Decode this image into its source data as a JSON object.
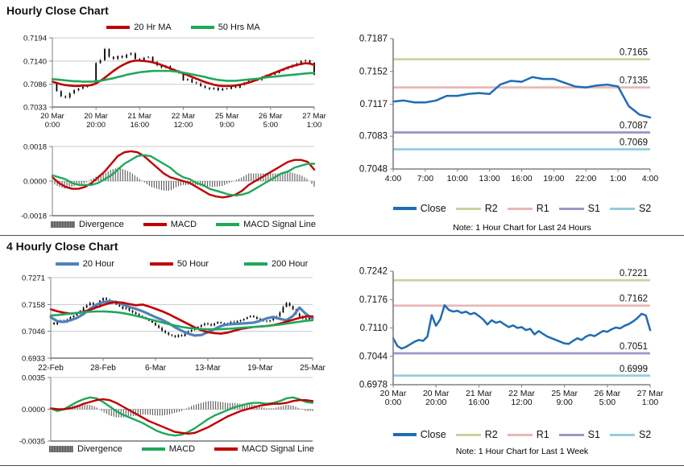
{
  "colors": {
    "red_ma": "#C00000",
    "green_ma": "#1FA85A",
    "blue_ma": "#4F81BD",
    "close_blue": "#1F6CB4",
    "r2": "#C4D69B",
    "r1": "#E6B9B8",
    "s1": "#A294C5",
    "s2": "#92CDDC",
    "divergence_gray": "#595959",
    "candle_black": "#000000"
  },
  "chart_data": [
    {
      "type": "candlestick",
      "title": "Hourly Close Chart",
      "ylim": [
        0.7033,
        0.7194
      ],
      "yticks": [
        [
          "0.7194",
          0.7194
        ],
        [
          "0.7140",
          0.714
        ],
        [
          "0.7086",
          0.7086
        ],
        [
          "0.7033",
          0.7033
        ]
      ],
      "xticks": [
        [
          "20 Mar",
          "0:00"
        ],
        [
          "20 Mar",
          "20:00"
        ],
        [
          "21 Mar",
          "16:00"
        ],
        [
          "22 Mar",
          "12:00"
        ],
        [
          "25 Mar",
          "9:00"
        ],
        [
          "26 Mar",
          "5:00"
        ],
        [
          "27 Mar",
          "1:00"
        ]
      ],
      "legend": [
        "20 Hr MA",
        "50 Hrs MA"
      ],
      "series": [
        {
          "name": "Close",
          "kind": "candle",
          "color": "#000000",
          "values": [
            0.7088,
            0.707,
            0.7058,
            0.7055,
            0.7065,
            0.7072,
            0.7076,
            0.708,
            0.7084,
            0.7086,
            0.7135,
            0.7142,
            0.7168,
            0.715,
            0.7145,
            0.7152,
            0.7148,
            0.7155,
            0.7158,
            0.7145,
            0.7142,
            0.7148,
            0.715,
            0.7138,
            0.713,
            0.7125,
            0.7128,
            0.712,
            0.7118,
            0.7112,
            0.7095,
            0.7098,
            0.709,
            0.7088,
            0.7082,
            0.7078,
            0.7075,
            0.7078,
            0.7072,
            0.7076,
            0.7075,
            0.708,
            0.7078,
            0.7085,
            0.709,
            0.7094,
            0.7098,
            0.7096,
            0.7102,
            0.7106,
            0.7108,
            0.7112,
            0.7118,
            0.7122,
            0.7126,
            0.713,
            0.7134,
            0.714,
            0.7142,
            0.7136,
            0.7108
          ]
        },
        {
          "name": "20 Hr MA",
          "kind": "line",
          "color": "#C00000",
          "values": [
            0.7092,
            0.7089,
            0.7086,
            0.7084,
            0.7083,
            0.7082,
            0.7082,
            0.7083,
            0.7083,
            0.7084,
            0.7088,
            0.7094,
            0.7101,
            0.7109,
            0.7117,
            0.7124,
            0.713,
            0.7135,
            0.7139,
            0.7141,
            0.7141,
            0.714,
            0.7139,
            0.7137,
            0.7134,
            0.7131,
            0.7127,
            0.7123,
            0.7119,
            0.7115,
            0.7111,
            0.7107,
            0.7103,
            0.7099,
            0.7095,
            0.7091,
            0.7088,
            0.7085,
            0.7083,
            0.7082,
            0.7082,
            0.7082,
            0.7083,
            0.7085,
            0.7087,
            0.709,
            0.7093,
            0.7097,
            0.7101,
            0.7105,
            0.7109,
            0.7113,
            0.7117,
            0.7121,
            0.7125,
            0.7128,
            0.7131,
            0.7133,
            0.7135,
            0.7134,
            0.7131
          ]
        },
        {
          "name": "50 Hrs MA",
          "kind": "line",
          "color": "#1FA85A",
          "values": [
            0.7098,
            0.7097,
            0.7096,
            0.7095,
            0.7094,
            0.7093,
            0.7093,
            0.7092,
            0.7092,
            0.7092,
            0.7093,
            0.7094,
            0.7096,
            0.7098,
            0.71,
            0.7103,
            0.7105,
            0.7108,
            0.711,
            0.7112,
            0.7114,
            0.7115,
            0.7116,
            0.7117,
            0.7117,
            0.7117,
            0.7117,
            0.7117,
            0.7116,
            0.7115,
            0.7113,
            0.7111,
            0.7109,
            0.7107,
            0.7105,
            0.7103,
            0.71,
            0.7098,
            0.7096,
            0.7095,
            0.7094,
            0.7094,
            0.7094,
            0.7095,
            0.7096,
            0.7097,
            0.7098,
            0.7099,
            0.71,
            0.7102,
            0.7103,
            0.7104,
            0.7105,
            0.7106,
            0.7107,
            0.7108,
            0.7109,
            0.711,
            0.7111,
            0.7112,
            0.7112
          ]
        }
      ]
    },
    {
      "type": "macd",
      "ylim": [
        -0.0018,
        0.0018
      ],
      "yticks": [
        [
          "0.0018",
          0.0018
        ],
        [
          "0.0000",
          0.0
        ],
        [
          "-0.0018",
          -0.0018
        ]
      ],
      "legend": [
        "Divergence",
        "MACD",
        "MACD Signal Line"
      ],
      "series": [
        {
          "name": "Divergence",
          "kind": "bars",
          "color": "#595959"
        },
        {
          "name": "MACD",
          "kind": "line",
          "color": "#C00000",
          "values": [
            0.0002,
            -0.0001,
            -0.0003,
            -0.0004,
            -0.0004,
            -0.0003,
            -0.0001,
            0.0002,
            0.0005,
            0.0009,
            0.0013,
            0.0015,
            0.00155,
            0.0015,
            0.0013,
            0.001,
            0.0007,
            0.0004,
            0.0002,
            0.0001,
            0.0,
            -0.0001,
            -0.0003,
            -0.0005,
            -0.0007,
            -0.0008,
            -0.00085,
            -0.0008,
            -0.0007,
            -0.0005,
            -0.0002,
            0.0,
            0.0002,
            0.0004,
            0.0006,
            0.0008,
            0.001,
            0.0011,
            0.0011,
            0.001,
            0.0006
          ]
        },
        {
          "name": "MACD Signal Line",
          "kind": "line",
          "color": "#1FA85A",
          "values": [
            0.0003,
            0.0002,
            0.0001,
            -0.0001,
            -0.0002,
            -0.0002,
            -0.0002,
            -0.0001,
            0.0001,
            0.0003,
            0.0006,
            0.0009,
            0.0011,
            0.0013,
            0.00135,
            0.0013,
            0.0011,
            0.0009,
            0.0007,
            0.0004,
            0.0002,
            0.0001,
            -0.0001,
            -0.0002,
            -0.0004,
            -0.0005,
            -0.0006,
            -0.0007,
            -0.00075,
            -0.0007,
            -0.0006,
            -0.0004,
            -0.0002,
            0.0,
            0.0002,
            0.0004,
            0.0005,
            0.0007,
            0.0008,
            0.0009,
            0.0009
          ]
        }
      ]
    },
    {
      "type": "pivot",
      "note": "Note: 1 Hour Chart for Last 24 Hours",
      "ylim": [
        0.7048,
        0.7187
      ],
      "yticks": [
        [
          "0.7187",
          0.7187
        ],
        [
          "0.7152",
          0.7152
        ],
        [
          "0.7117",
          0.7117
        ],
        [
          "0.7083",
          0.7083
        ],
        [
          "0.7048",
          0.7048
        ]
      ],
      "xticks": [
        "4:00",
        "7:00",
        "10:00",
        "13:00",
        "16:00",
        "19:00",
        "22:00",
        "1:00",
        "4:00"
      ],
      "close": {
        "name": "Close",
        "color": "#1F6CB4",
        "values": [
          0.712,
          0.7121,
          0.7119,
          0.7119,
          0.7121,
          0.7126,
          0.7126,
          0.7128,
          0.7129,
          0.7128,
          0.7138,
          0.7142,
          0.7141,
          0.7146,
          0.7144,
          0.7144,
          0.714,
          0.7136,
          0.7135,
          0.7137,
          0.7138,
          0.7136,
          0.7115,
          0.7106,
          0.7103
        ]
      },
      "levels": [
        {
          "name": "R2",
          "label": "0.7165",
          "value": 0.7165,
          "color": "#C4D69B"
        },
        {
          "name": "R1",
          "label": "0.7135",
          "value": 0.7135,
          "color": "#E6B9B8"
        },
        {
          "name": "S1",
          "label": "0.7087",
          "value": 0.7087,
          "color": "#A294C5"
        },
        {
          "name": "S2",
          "label": "0.7069",
          "value": 0.7069,
          "color": "#92CDDC"
        }
      ]
    },
    {
      "type": "candlestick",
      "title": "4 Hourly Close Chart",
      "ylim": [
        0.6933,
        0.7271
      ],
      "yticks": [
        [
          "0.7271",
          0.7271
        ],
        [
          "0.7158",
          0.7158
        ],
        [
          "0.7046",
          0.7046
        ],
        [
          "0.6933",
          0.6933
        ]
      ],
      "xticks": [
        "22-Feb",
        "28-Feb",
        "6-Mar",
        "13-Mar",
        "19-Mar",
        "25-Mar"
      ],
      "legend": [
        "20 Hour",
        "50 Hour",
        "200 Hour"
      ],
      "series": [
        {
          "name": "Close",
          "kind": "candle",
          "color": "#000000",
          "values": [
            0.7082,
            0.7075,
            0.7085,
            0.709,
            0.7086,
            0.7095,
            0.7105,
            0.7112,
            0.712,
            0.7132,
            0.7145,
            0.7155,
            0.7165,
            0.7158,
            0.715,
            0.7175,
            0.7185,
            0.7178,
            0.7165,
            0.717,
            0.7158,
            0.715,
            0.714,
            0.7145,
            0.7132,
            0.7125,
            0.7118,
            0.711,
            0.7105,
            0.7098,
            0.709,
            0.7082,
            0.707,
            0.706,
            0.7048,
            0.704,
            0.7032,
            0.7028,
            0.7022,
            0.703,
            0.7025,
            0.7035,
            0.7045,
            0.7052,
            0.7058,
            0.7065,
            0.7072,
            0.7078,
            0.7075,
            0.707,
            0.7078,
            0.7085,
            0.708,
            0.7072,
            0.7078,
            0.7085,
            0.7082,
            0.7088,
            0.7092,
            0.7098,
            0.7105,
            0.711,
            0.7105,
            0.7098,
            0.7095,
            0.709,
            0.7088,
            0.7092,
            0.71,
            0.7108,
            0.7125,
            0.7148,
            0.7165,
            0.7152,
            0.7138,
            0.712,
            0.7108,
            0.71,
            0.7096,
            0.7102,
            0.7105
          ]
        },
        {
          "name": "20 Hour",
          "kind": "line",
          "color": "#4F81BD",
          "width": 3.2,
          "values": [
            0.7105,
            0.7088,
            0.7085,
            0.7092,
            0.7102,
            0.7118,
            0.714,
            0.7158,
            0.7168,
            0.7172,
            0.7168,
            0.7158,
            0.7148,
            0.714,
            0.713,
            0.7118,
            0.7105,
            0.7094,
            0.708,
            0.7062,
            0.7048,
            0.7036,
            0.7028,
            0.703,
            0.7042,
            0.7055,
            0.7068,
            0.7075,
            0.7076,
            0.7078,
            0.708,
            0.7082,
            0.709,
            0.71,
            0.7106,
            0.7098,
            0.7092,
            0.711,
            0.7145,
            0.7118,
            0.71
          ]
        },
        {
          "name": "50 Hour",
          "kind": "line",
          "color": "#C00000",
          "values": [
            0.7138,
            0.713,
            0.7124,
            0.712,
            0.7122,
            0.7128,
            0.7136,
            0.7146,
            0.7156,
            0.7164,
            0.7168,
            0.7166,
            0.716,
            0.7155,
            0.7158,
            0.715,
            0.714,
            0.713,
            0.7118,
            0.7104,
            0.709,
            0.7076,
            0.7062,
            0.705,
            0.7042,
            0.7038,
            0.7036,
            0.704,
            0.7048,
            0.7055,
            0.706,
            0.7064,
            0.7066,
            0.7068,
            0.7072,
            0.7078,
            0.7086,
            0.7094,
            0.7102,
            0.7108,
            0.7108
          ]
        },
        {
          "name": "200 Hour",
          "kind": "line",
          "color": "#1FA85A",
          "values": [
            0.7112,
            0.7114,
            0.7117,
            0.712,
            0.7123,
            0.7126,
            0.7128,
            0.7129,
            0.7129,
            0.7128,
            0.7126,
            0.7122,
            0.7117,
            0.7111,
            0.7104,
            0.7097,
            0.709,
            0.7083,
            0.7076,
            0.707,
            0.7064,
            0.706,
            0.7057,
            0.7055,
            0.7054,
            0.7054,
            0.7055,
            0.7056,
            0.7058,
            0.706,
            0.7062,
            0.7064,
            0.7066,
            0.7068,
            0.7071,
            0.7074,
            0.7078,
            0.7082,
            0.7086,
            0.709,
            0.7092
          ]
        }
      ]
    },
    {
      "type": "macd",
      "ylim": [
        -0.0035,
        0.0035
      ],
      "yticks": [
        [
          "0.0035",
          0.0035
        ],
        [
          "0.0000",
          0.0
        ],
        [
          "-0.0035",
          -0.0035
        ]
      ],
      "legend": [
        "Divergence",
        "MACD",
        "MACD Signal Line"
      ],
      "series": [
        {
          "name": "Divergence",
          "kind": "bars",
          "color": "#595959"
        },
        {
          "name": "MACD",
          "kind": "line",
          "color": "#1FA85A",
          "values": [
            0.0001,
            -0.0002,
            0.0,
            0.0004,
            0.0008,
            0.0011,
            0.0013,
            0.0012,
            0.0008,
            0.0003,
            -0.0002,
            -0.0006,
            -0.0009,
            -0.0012,
            -0.0015,
            -0.0019,
            -0.0023,
            -0.0026,
            -0.0028,
            -0.0029,
            -0.0028,
            -0.0025,
            -0.0021,
            -0.0016,
            -0.0011,
            -0.0007,
            -0.0004,
            -0.0001,
            0.0002,
            0.0004,
            0.0006,
            0.0007,
            0.0007,
            0.0006,
            0.0007,
            0.0009,
            0.0012,
            0.0013,
            0.0011,
            0.0008,
            0.0007
          ]
        },
        {
          "name": "MACD Signal Line",
          "kind": "line",
          "color": "#C00000",
          "values": [
            0.0001,
            0.0,
            0.0,
            0.0001,
            0.0003,
            0.0006,
            0.0008,
            0.001,
            0.0011,
            0.001,
            0.0007,
            0.0003,
            -0.0001,
            -0.0005,
            -0.0009,
            -0.0013,
            -0.0016,
            -0.0019,
            -0.0022,
            -0.0025,
            -0.0026,
            -0.0027,
            -0.0026,
            -0.0023,
            -0.002,
            -0.0016,
            -0.0012,
            -0.0008,
            -0.0005,
            -0.0002,
            0.0,
            0.0002,
            0.0004,
            0.0005,
            0.0006,
            0.0006,
            0.0007,
            0.0009,
            0.001,
            0.001,
            0.0009
          ]
        }
      ]
    },
    {
      "type": "pivot",
      "note": "Note: 1 Hour Chart for Last 1 Week",
      "ylim": [
        0.6978,
        0.7242
      ],
      "yticks": [
        [
          "0.7242",
          0.7242
        ],
        [
          "0.7176",
          0.7176
        ],
        [
          "0.7110",
          0.711
        ],
        [
          "0.7044",
          0.7044
        ],
        [
          "0.6978",
          0.6978
        ]
      ],
      "xticks": [
        [
          "20 Mar",
          "0:00"
        ],
        [
          "20 Mar",
          "20:00"
        ],
        [
          "21 Mar",
          "16:00"
        ],
        [
          "22 Mar",
          "12:00"
        ],
        [
          "25 Mar",
          "9:00"
        ],
        [
          "26 Mar",
          "5:00"
        ],
        [
          "27 Mar",
          "1:00"
        ]
      ],
      "close": {
        "name": "Close",
        "color": "#1F6CB4",
        "values": [
          0.7086,
          0.7068,
          0.7062,
          0.7066,
          0.7072,
          0.7078,
          0.7082,
          0.708,
          0.709,
          0.714,
          0.7115,
          0.713,
          0.7163,
          0.7152,
          0.7148,
          0.715,
          0.7145,
          0.7148,
          0.7142,
          0.7145,
          0.7138,
          0.713,
          0.7118,
          0.7128,
          0.7122,
          0.7125,
          0.7118,
          0.7112,
          0.7116,
          0.711,
          0.7112,
          0.7105,
          0.7108,
          0.7095,
          0.7103,
          0.7096,
          0.709,
          0.7086,
          0.7082,
          0.7078,
          0.7074,
          0.7073,
          0.708,
          0.7086,
          0.7082,
          0.709,
          0.7094,
          0.7091,
          0.7097,
          0.7103,
          0.7101,
          0.7107,
          0.7111,
          0.7109,
          0.7115,
          0.7119,
          0.7125,
          0.7133,
          0.7143,
          0.7139,
          0.7105
        ]
      },
      "levels": [
        {
          "name": "R2",
          "label": "0.7221",
          "value": 0.7221,
          "color": "#C4D69B"
        },
        {
          "name": "R1",
          "label": "0.7162",
          "value": 0.7162,
          "color": "#E6B9B8"
        },
        {
          "name": "S1",
          "label": "0.7051",
          "value": 0.7051,
          "color": "#A294C5"
        },
        {
          "name": "S2",
          "label": "0.6999",
          "value": 0.6999,
          "color": "#92CDDC"
        }
      ]
    }
  ]
}
